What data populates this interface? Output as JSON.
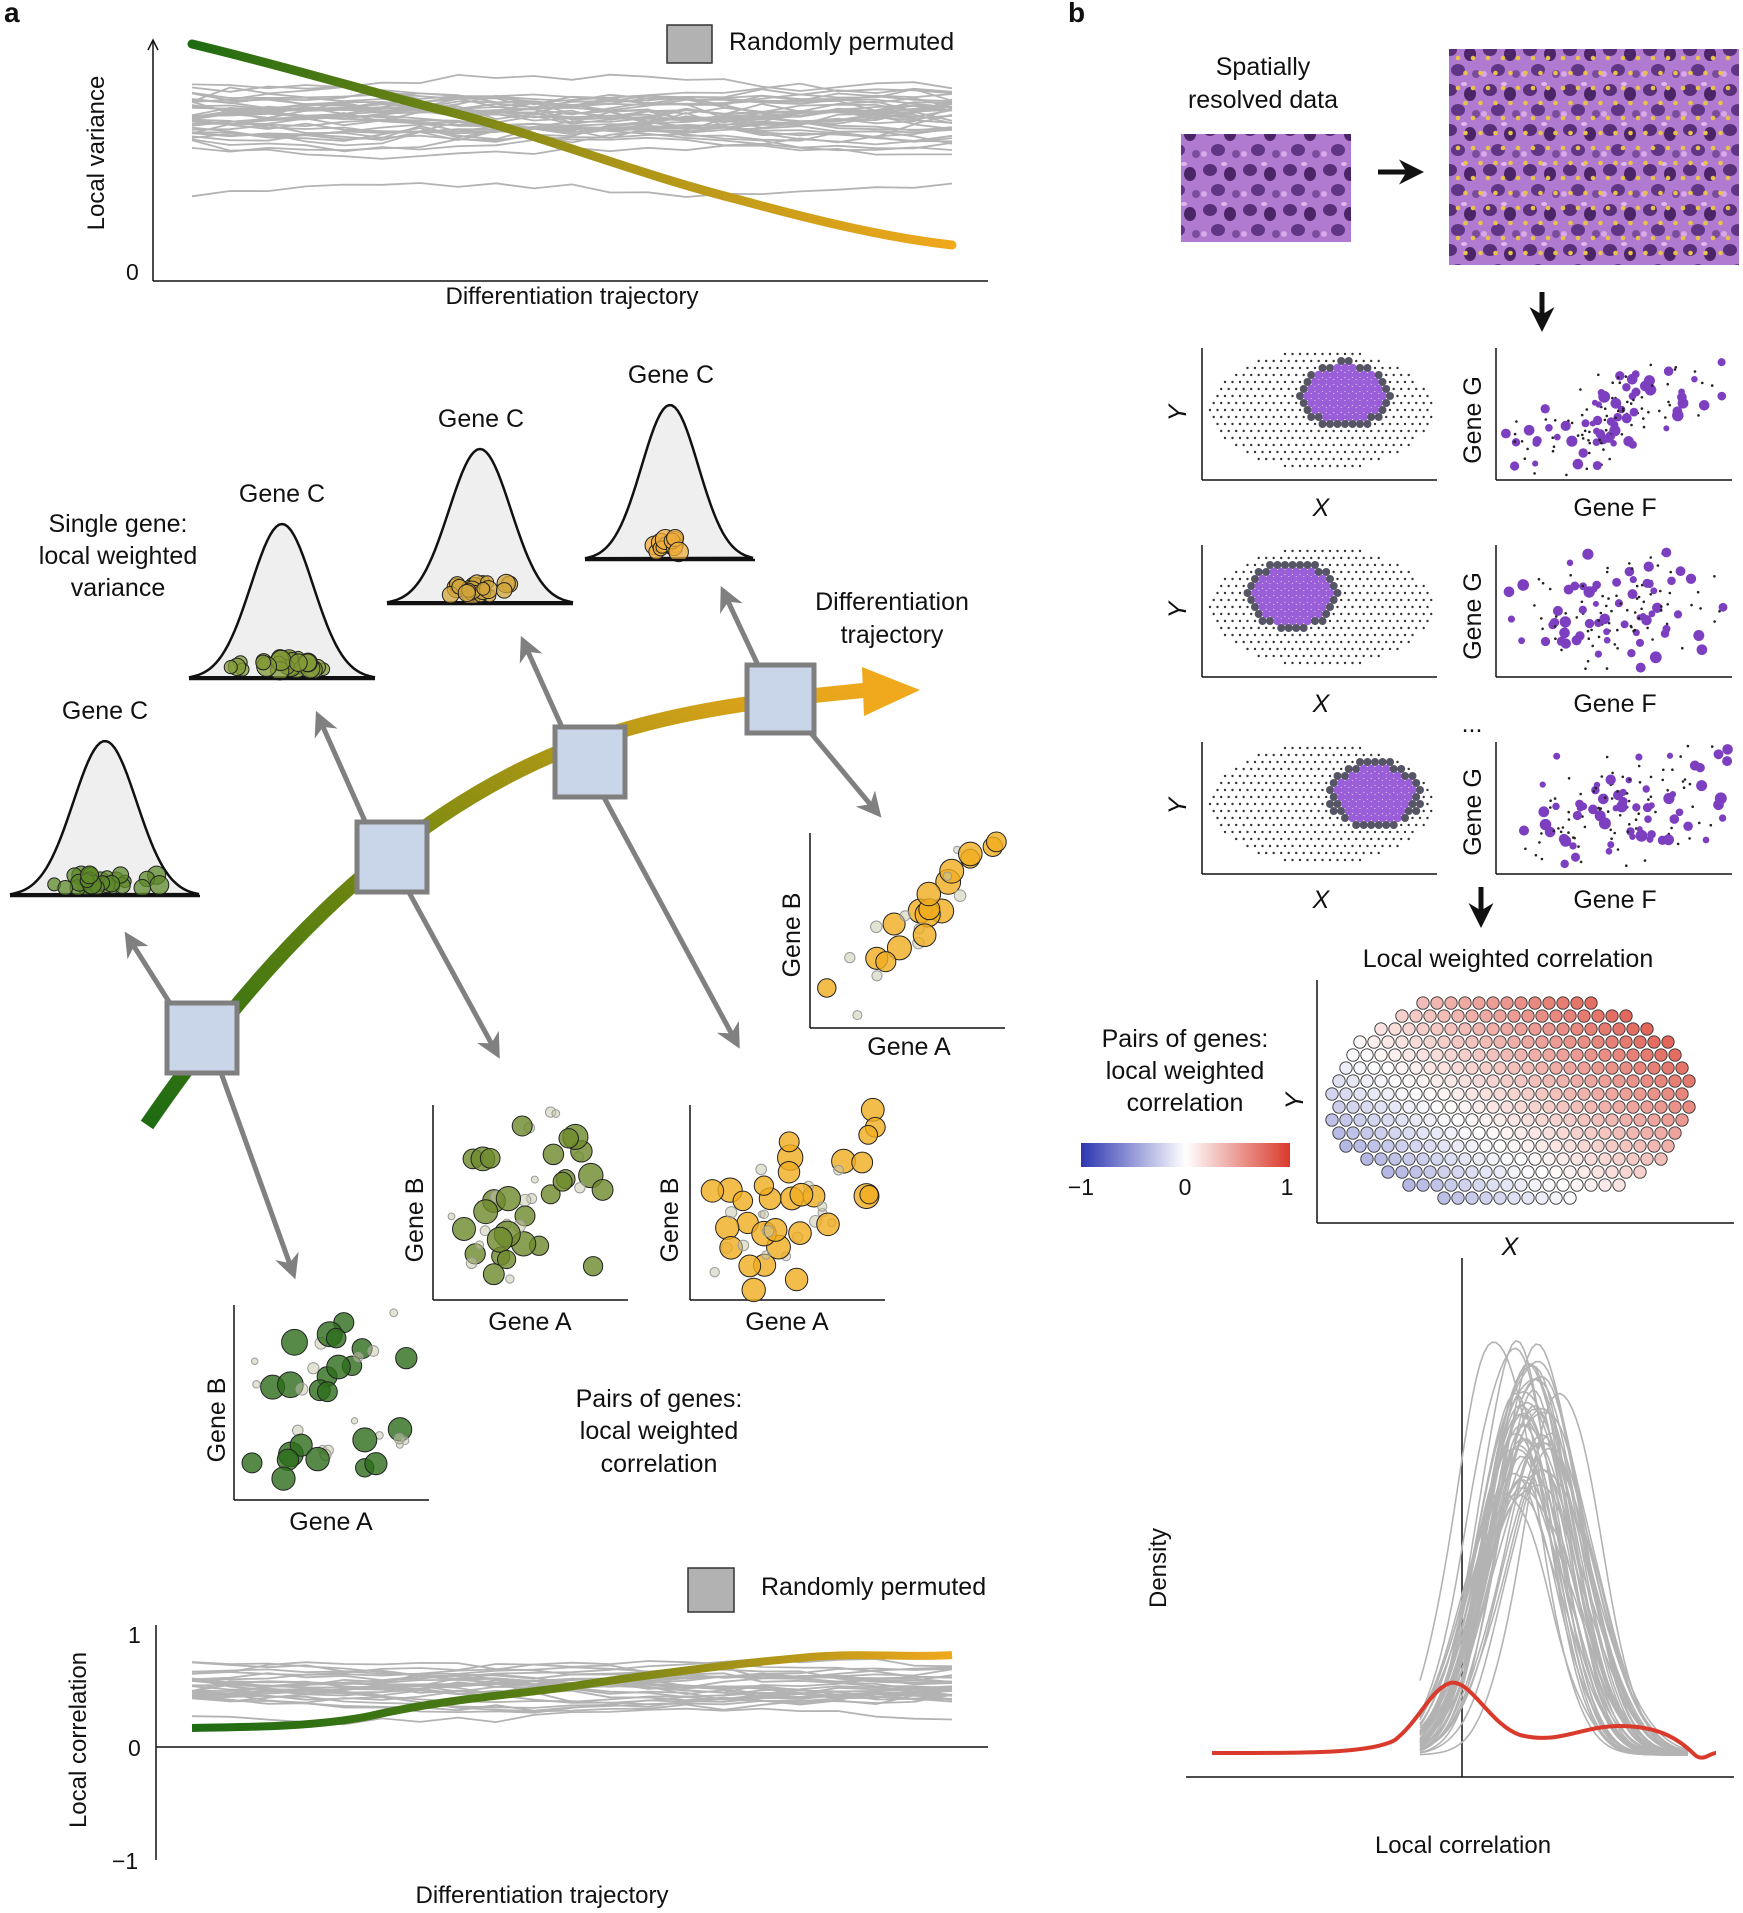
{
  "panel_a": {
    "label": "a",
    "top_chart": {
      "ylabel": "Local variance",
      "xlabel": "Differentiation trajectory",
      "ytick_zero": "0",
      "legend": "Randomly permuted"
    },
    "single_gene_label": [
      "Single gene:",
      "local weighted",
      "variance"
    ],
    "gene_c": "Gene C",
    "trajectory_label": [
      "Differentiation",
      "trajectory"
    ],
    "scatter_xlabel": "Gene A",
    "scatter_ylabel": "Gene B",
    "pairs_label": [
      "Pairs of genes:",
      "local weighted",
      "correlation"
    ],
    "bottom_chart": {
      "ylabel": "Local correlation",
      "xlabel": "Differentiation trajectory",
      "yticks": [
        "1",
        "0",
        "−1"
      ],
      "legend": "Randomly permuted"
    }
  },
  "panel_b": {
    "label": "b",
    "spatial_label": [
      "Spatially",
      "resolved data"
    ],
    "map_xlabel": "X",
    "map_ylabel": "Y",
    "gene_f": "Gene F",
    "gene_g": "Gene G",
    "ellipsis": "...",
    "local_corr_title": "Local weighted correlation",
    "pairs_label": [
      "Pairs of genes:",
      "local weighted",
      "correlation"
    ],
    "colorbar_ticks": [
      "−1",
      "0",
      "1"
    ],
    "density_ylabel": "Density",
    "density_xlabel": "Local correlation"
  },
  "colors": {
    "green": "#1e6b12",
    "orange": "#f0a81c",
    "gray_null": "#b3b3b3",
    "purple": "#8a4fc9",
    "red": "#d93a2b",
    "box_fill": "#c9d6ea"
  }
}
